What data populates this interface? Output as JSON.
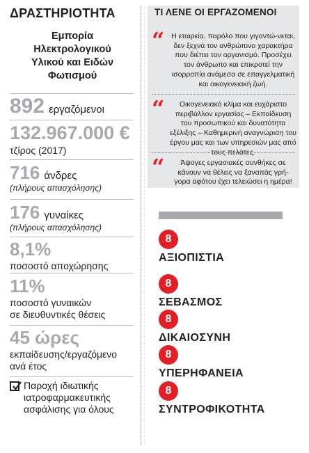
{
  "activity": {
    "heading": "ΔΡΑΣΤΗΡΙΟΤΗΤΑ",
    "value": "Εμπορία\nΗλεκτρολογικού\nΥλικού και Ειδών\nΦωτισμού"
  },
  "stats": {
    "employees": {
      "number": "892",
      "label": "εργαζόμενοι"
    },
    "revenue": {
      "number": "132.967.000",
      "currency": "€",
      "label": "τζίρος (2017)"
    },
    "men": {
      "number": "716",
      "label": "άνδρες",
      "sublabel": "(πλήρους απασχόλησης)"
    },
    "women": {
      "number": "176",
      "label": "γυναίκες",
      "sublabel": "(πλήρους απασχόλησης)"
    },
    "attrition": {
      "number": "8,1%",
      "label": "ποσοστό αποχώρησης"
    },
    "women_mgmt": {
      "number": "11%",
      "label_line1": "ποσοστό γυναικών",
      "label_line2": "σε διευθυντικές θέσεις"
    },
    "training": {
      "number": "45 ώρες",
      "label_line1": "εκπαίδευσης/εργαζόμενο",
      "label_line2": "ανά έτος"
    },
    "insurance": {
      "line1": "Παροχή ιδιωτικής",
      "line2": "ιατροφαρμακευτικής",
      "line3": "ασφάλισης για όλους",
      "icon": "checkbox-icon"
    }
  },
  "quotes": {
    "heading": "ΤΙ ΛΕΝΕ ΟΙ ΕΡΓΑΖΟΜΕΝΟΙ",
    "mark": "“",
    "items": [
      "Η εταιρεία, παρόλο που γιγαντώ-νεται, δεν ξεχνά τον ανθρώπινο χαρακτήρα που διέπει τον οργανισμό. Προσέχει τον άνθρωπο και επικροτεί την ισορροπία ανάμεσα σε επαγγελματική και οικογενειακή ζωή.",
      "Οικογενειακό κλίμα και ευχάριστο περιβάλλον εργασίας – Εκπαίδευση του προσωπικού και δυνατότητα εξέλιξης – Καθημερινή αναγνώριση του έργου μας και των υπηρεσιών μας από τους πελάτες.",
      "Άψογες εργασιακές συνθήκες σε κάνουν να θέλεις να ξαναπάς γρή-γορα αφότου έχει τελειώσει η ημέρα!"
    ]
  },
  "values": {
    "badge": "8",
    "items": [
      "ΑΞΙΟΠΙΣΤΙΑ",
      "ΣΕΒΑΣΜΟΣ",
      "ΔΙΚΑΙΟΣΥΝΗ",
      "ΥΠΕΡΗΦΑΝΕΙΑ",
      "ΣΥΝΤΡΟΦΙΚΟΤΗΤΑ"
    ]
  },
  "colors": {
    "accent_red": "#e31e24",
    "stat_gray": "#a7a9ac",
    "panel_gray": "#e6e7e8",
    "text": "#231f20"
  }
}
